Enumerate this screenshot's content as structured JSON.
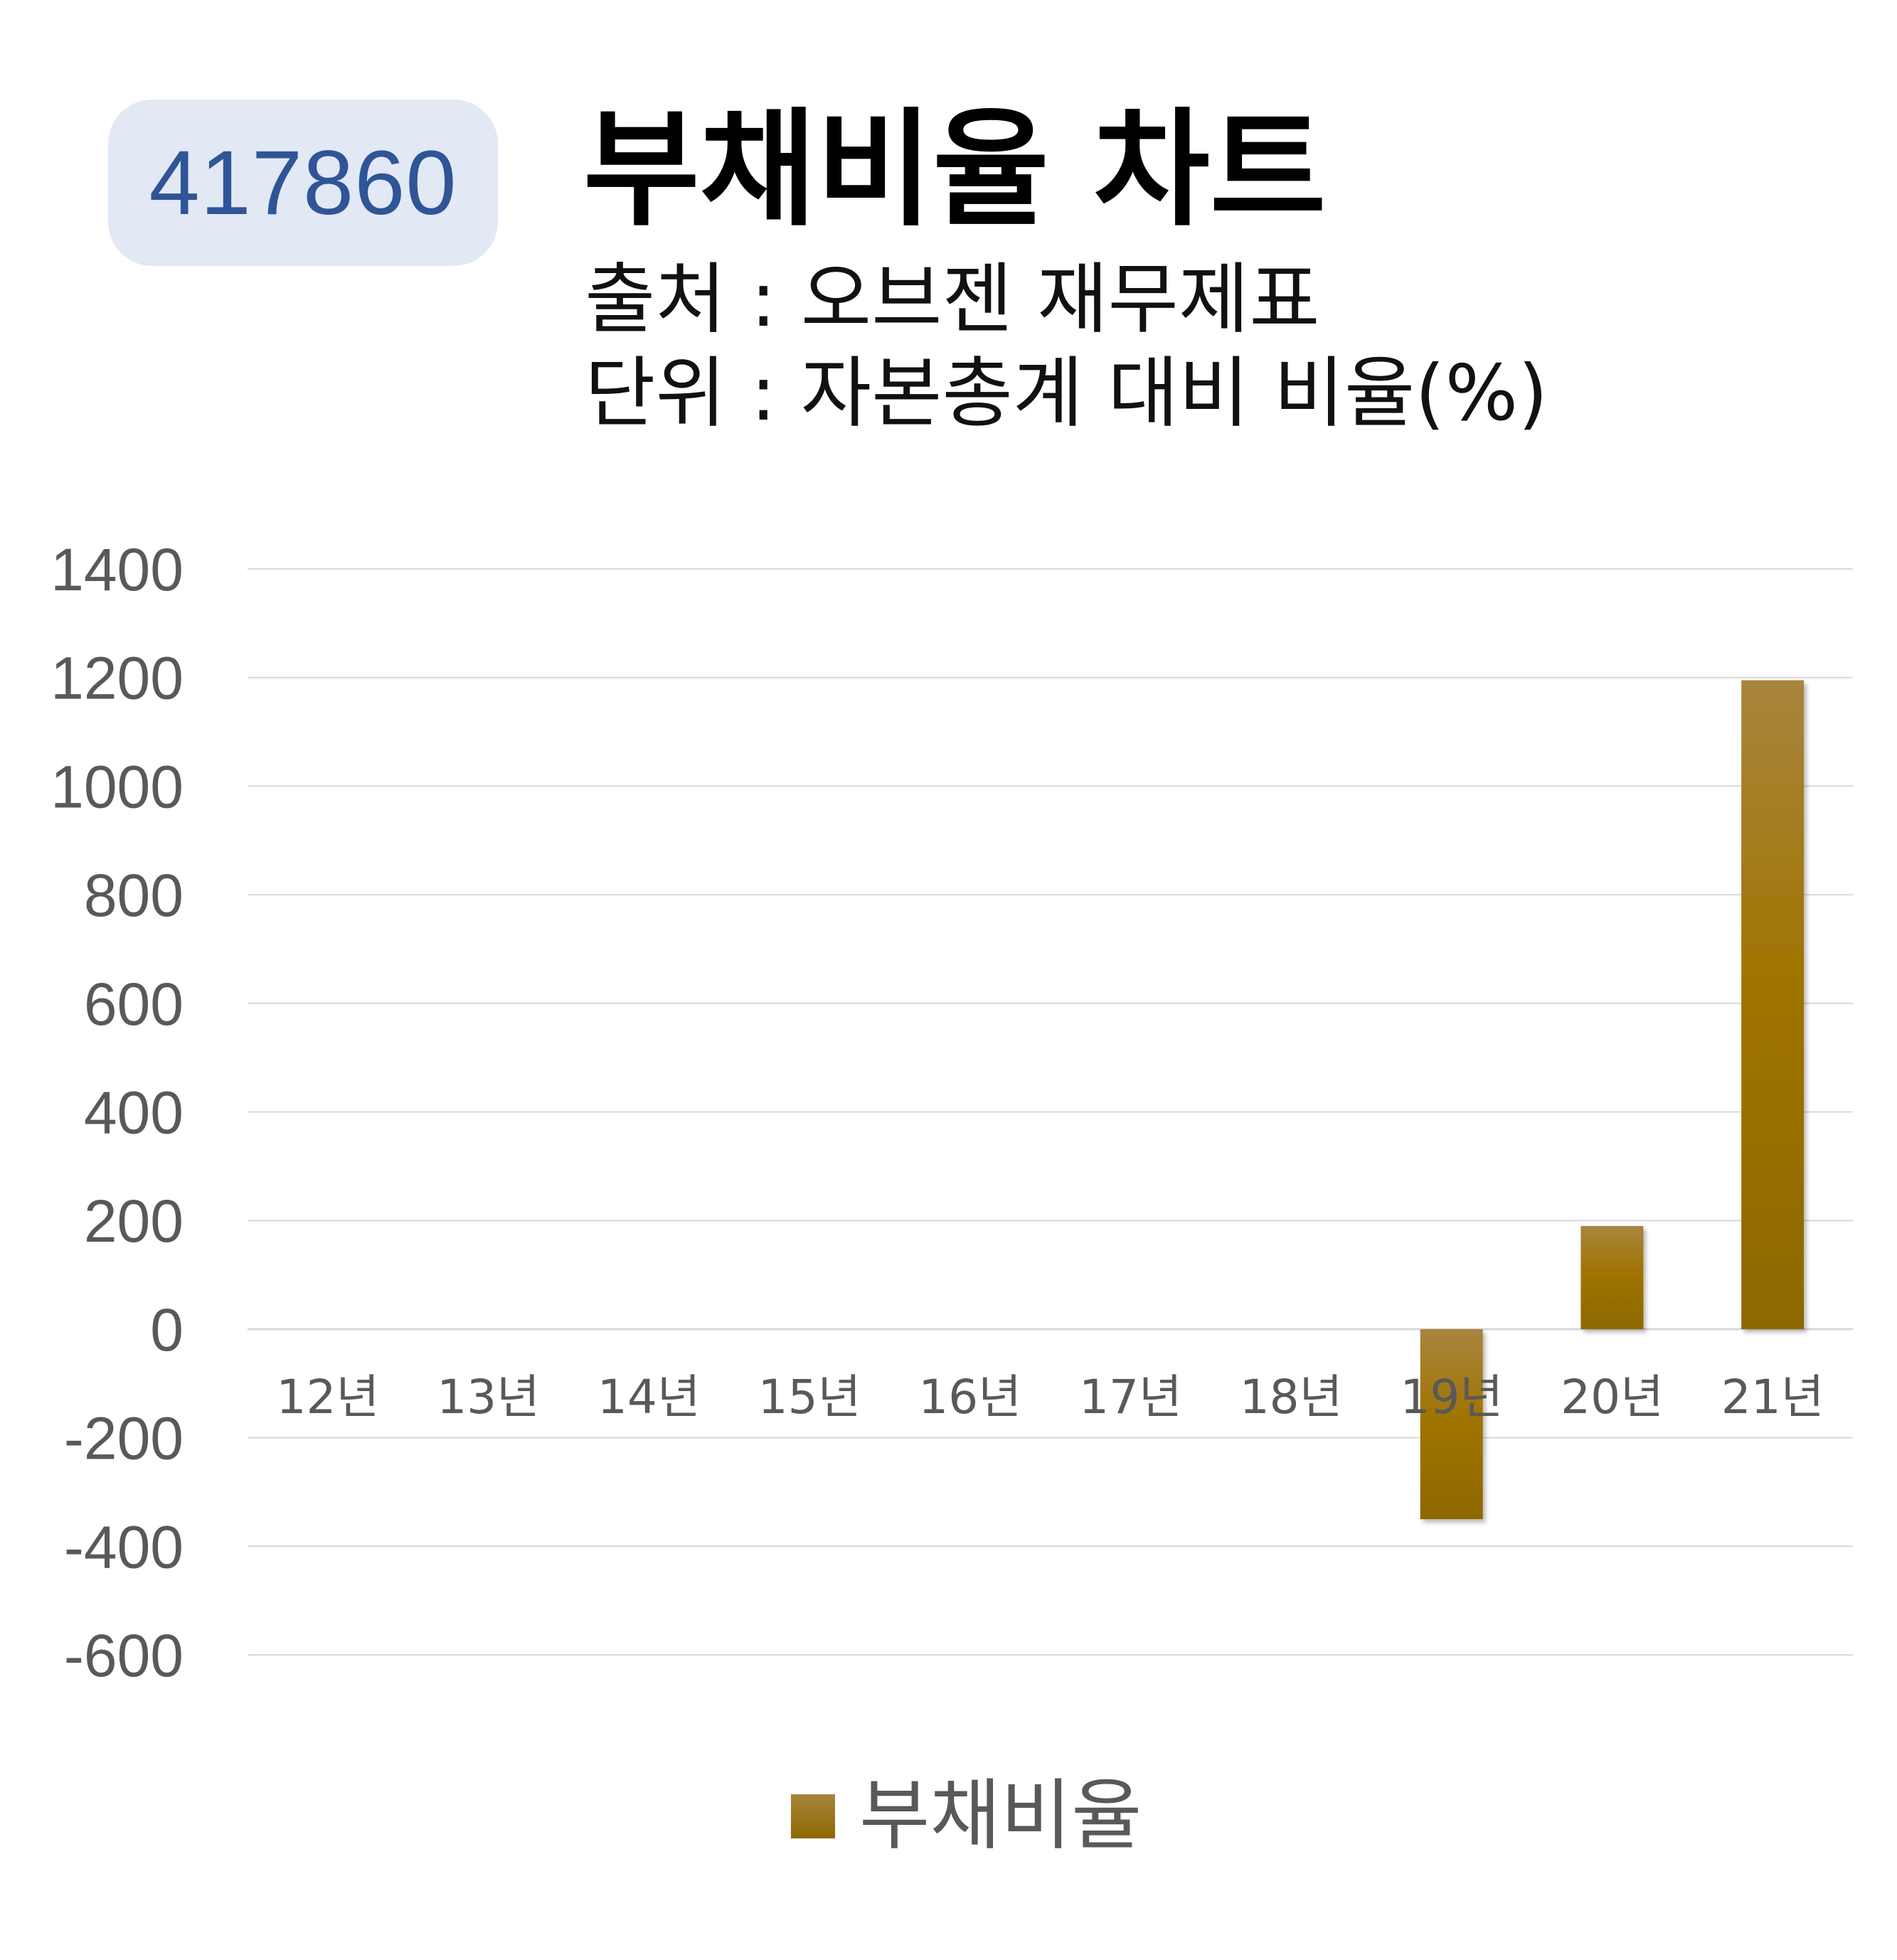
{
  "header": {
    "code": "417860",
    "title": "부채비율 차트",
    "source_line": "출처 : 오브젠 재무제표",
    "unit_line": "단위 : 자본총계 대비 비율(%)"
  },
  "colors": {
    "badge_bg": "#e2e8f4",
    "badge_text": "#2f5597",
    "bar_top": "#a8853e",
    "bar_mid": "#a07402",
    "bar_bottom": "#8d6800",
    "gridline": "#d9d9d9",
    "tick_text": "#595959"
  },
  "legend": {
    "label": "부채비율"
  },
  "chart_data": {
    "type": "bar",
    "title": "부채비율 차트",
    "xlabel": "",
    "ylabel": "",
    "categories": [
      "12년",
      "13년",
      "14년",
      "15년",
      "16년",
      "17년",
      "18년",
      "19년",
      "20년",
      "21년"
    ],
    "series": [
      {
        "name": "부채비율",
        "values": [
          null,
          null,
          null,
          null,
          null,
          null,
          null,
          -350,
          190,
          1195
        ]
      }
    ],
    "ylim": [
      -600,
      1400
    ],
    "yticks": [
      1400,
      1200,
      1000,
      800,
      600,
      400,
      200,
      0,
      -200,
      -400,
      -600
    ],
    "grid": true,
    "legend_position": "bottom"
  }
}
